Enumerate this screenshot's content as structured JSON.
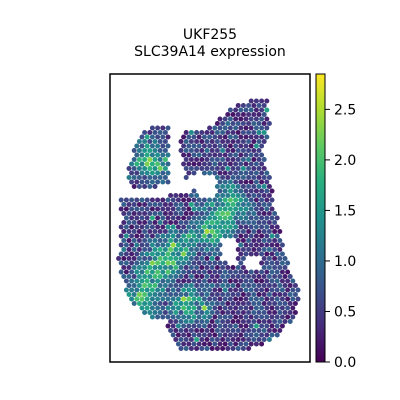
{
  "chart_data": {
    "type": "scatter",
    "title": "UKF255",
    "subtitle": "SLC39A14 expression",
    "xlabel": "",
    "ylabel": "",
    "colorbar": {
      "min": 0.0,
      "max": 2.85,
      "colormap": "viridis",
      "ticks": [
        "0.0",
        "0.5",
        "1.0",
        "1.5",
        "2.0",
        "2.5"
      ],
      "tick_values": [
        0.0,
        0.5,
        1.0,
        1.5,
        2.0,
        2.5
      ]
    },
    "grid": false,
    "legend": "none",
    "points": "spatial spot expression map (tissue section), values range 0.0–2.8"
  }
}
